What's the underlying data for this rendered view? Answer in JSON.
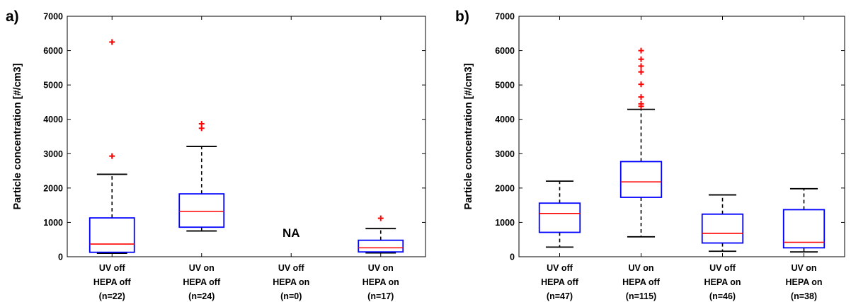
{
  "chart_data": [
    {
      "type": "box",
      "panel_label": "a)",
      "ylabel": "Particle concentration [#/cm3]",
      "ylim": [
        0,
        7000
      ],
      "yticks": [
        0,
        1000,
        2000,
        3000,
        4000,
        5000,
        6000,
        7000
      ],
      "categories": [
        [
          "UV off",
          "HEPA off",
          "(n=22)"
        ],
        [
          "UV on",
          "HEPA off",
          "(n=24)"
        ],
        [
          "UV off",
          "HEPA on",
          "(n=0)"
        ],
        [
          "UV on",
          "HEPA on",
          "(n=17)"
        ]
      ],
      "boxes": [
        {
          "min": 100,
          "q1": 130,
          "median": 370,
          "q3": 1130,
          "max": 2400,
          "outliers": [
            2930,
            6250
          ]
        },
        {
          "min": 750,
          "q1": 860,
          "median": 1320,
          "q3": 1830,
          "max": 3210,
          "outliers": [
            3740,
            3870
          ]
        },
        null,
        {
          "min": 110,
          "q1": 140,
          "median": 260,
          "q3": 480,
          "max": 820,
          "outliers": [
            1120
          ]
        }
      ],
      "annotations": [
        {
          "category_index": 2,
          "text": "NA",
          "y": 700
        }
      ],
      "colors": {
        "box": "#0000ff",
        "median": "#ff0000",
        "whisker": "#000000",
        "outlier": "#ff0000"
      }
    },
    {
      "type": "box",
      "panel_label": "b)",
      "ylabel": "Particle concentration [#/cm3]",
      "ylim": [
        0,
        7000
      ],
      "yticks": [
        0,
        1000,
        2000,
        3000,
        4000,
        5000,
        6000,
        7000
      ],
      "categories": [
        [
          "UV off",
          "HEPA off",
          "(n=47)"
        ],
        [
          "UV on",
          "HEPA off",
          "(n=115)"
        ],
        [
          "UV off",
          "HEPA on",
          "(n=46)"
        ],
        [
          "UV on",
          "HEPA on",
          "(n=38)"
        ]
      ],
      "boxes": [
        {
          "min": 280,
          "q1": 710,
          "median": 1260,
          "q3": 1560,
          "max": 2200,
          "outliers": []
        },
        {
          "min": 580,
          "q1": 1730,
          "median": 2180,
          "q3": 2770,
          "max": 4290,
          "outliers": [
            4380,
            4450,
            4650,
            5020,
            5380,
            5550,
            5750,
            6000
          ]
        },
        {
          "min": 160,
          "q1": 400,
          "median": 680,
          "q3": 1240,
          "max": 1800,
          "outliers": []
        },
        {
          "min": 140,
          "q1": 260,
          "median": 420,
          "q3": 1370,
          "max": 1980,
          "outliers": []
        }
      ],
      "annotations": [],
      "colors": {
        "box": "#0000ff",
        "median": "#ff0000",
        "whisker": "#000000",
        "outlier": "#ff0000"
      }
    }
  ]
}
